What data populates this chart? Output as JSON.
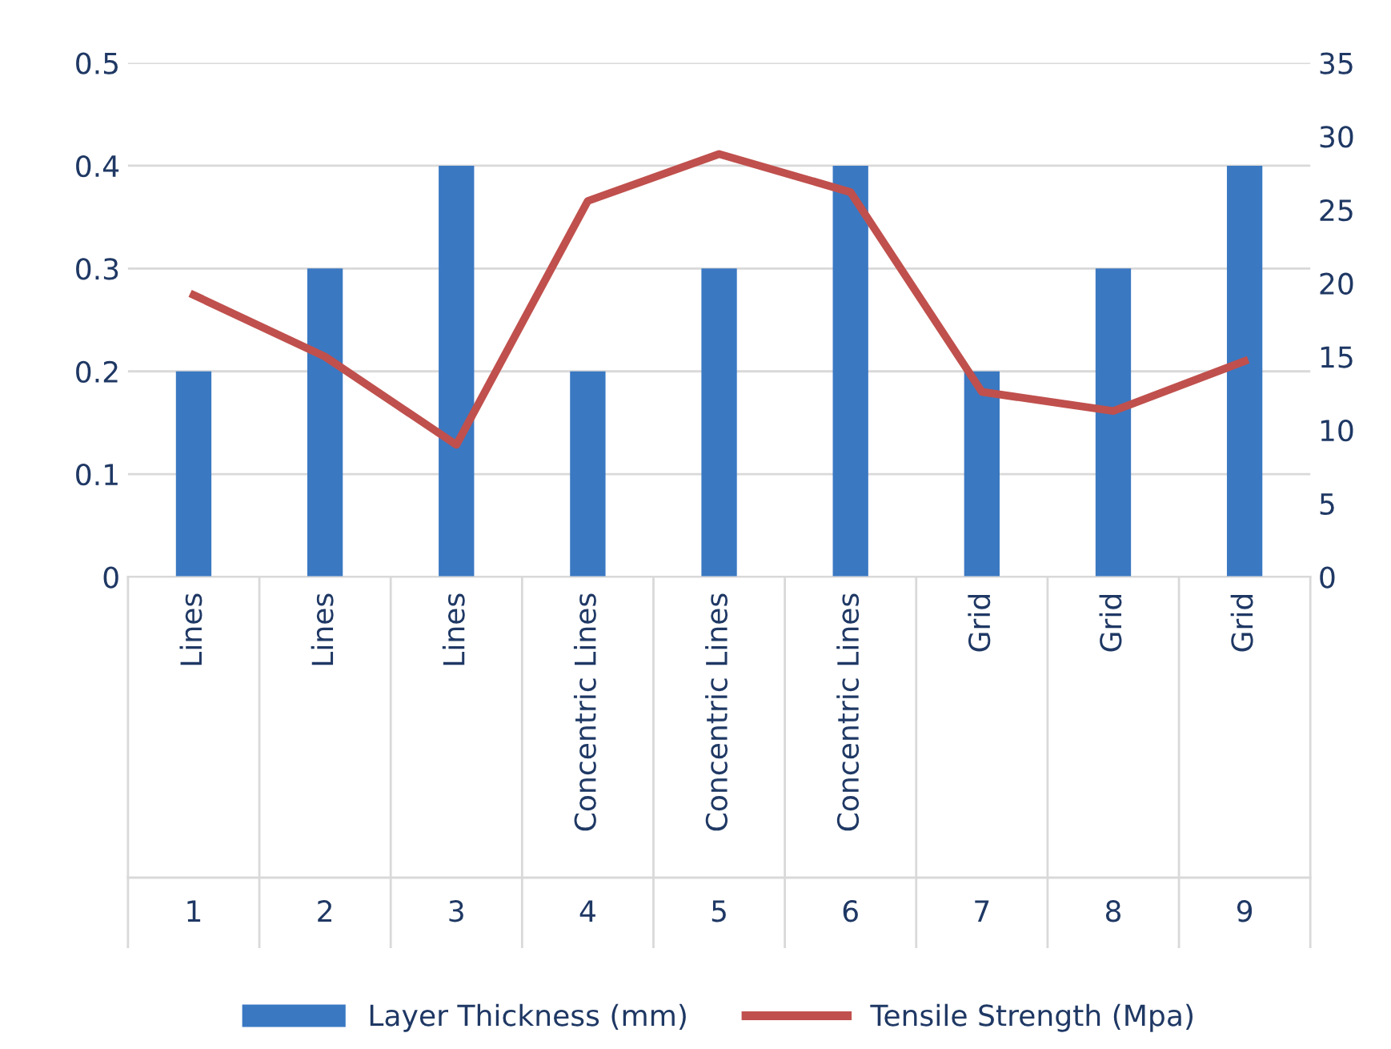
{
  "chart_data": {
    "type": "bar",
    "categories": [
      "Lines\n1",
      "Lines\n2",
      "Lines\n3",
      "Concentric Lines\n4",
      "Concentric Lines\n5",
      "Concentric Lines\n6",
      "Grid\n7",
      "Grid\n8",
      "Grid\n9"
    ],
    "series": [
      {
        "name": "Layer Thickness (mm)",
        "color": "#3a78c2",
        "values": [
          0.2,
          0.3,
          0.4,
          0.2,
          0.3,
          0.4,
          0.2,
          0.3,
          0.4
        ]
      },
      {
        "name": "Tensile Strength (Mpa)",
        "color": "#c0504d",
        "type": "line",
        "axis": "y2",
        "values": [
          19.2,
          15,
          9,
          25.6,
          28.8,
          26.2,
          12.6,
          11.3,
          14.7
        ]
      }
    ],
    "ylim": [
      0,
      0.5
    ],
    "yticks": [
      0,
      0.1,
      0.2,
      0.3,
      0.4,
      0.5
    ],
    "y2lim": [
      0,
      35
    ],
    "y2ticks": [
      0,
      5,
      10,
      15,
      20,
      25,
      30,
      35
    ],
    "grid": "y",
    "legend": "bottom",
    "marker": "none",
    "line_style": "solid"
  }
}
